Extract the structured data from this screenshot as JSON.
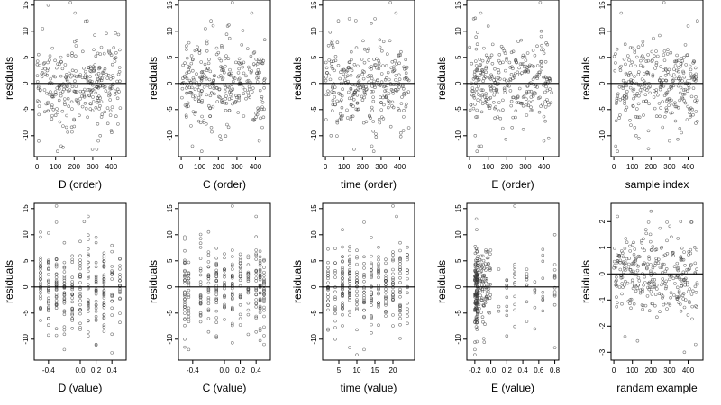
{
  "figure": {
    "background": "#ffffff",
    "point_color": "#3a3a3a",
    "line_color": "#000000"
  },
  "chart_data": [
    {
      "type": "scatter",
      "xlabel": "D (order)",
      "ylabel": "residuals",
      "xlim": [
        -15,
        480
      ],
      "ylim": [
        -14,
        16
      ],
      "xticks": [
        0,
        100,
        200,
        300,
        400
      ],
      "xtick_labels": [
        "0",
        "100",
        "200",
        "300",
        "400"
      ],
      "yticks": [
        -10,
        -5,
        0,
        5,
        10,
        15
      ],
      "ytick_labels": [
        "-10",
        "-5",
        "0",
        "5",
        "10",
        "15"
      ],
      "hline": 0,
      "x_distribution": "uniform",
      "x_range": [
        0,
        450
      ],
      "x": [
        30,
        110,
        205,
        270,
        340,
        130,
        180,
        330,
        400,
        60
      ],
      "y": [
        10.5,
        -13,
        13.5,
        12,
        -10,
        -12,
        15.5,
        -11,
        -9,
        15
      ]
    },
    {
      "type": "scatter",
      "xlabel": "C (order)",
      "ylabel": "residuals",
      "xlim": [
        -15,
        480
      ],
      "ylim": [
        -14,
        16
      ],
      "xticks": [
        0,
        100,
        200,
        300,
        400
      ],
      "xtick_labels": [
        "0",
        "100",
        "200",
        "300",
        "400"
      ],
      "yticks": [
        -10,
        -5,
        0,
        5,
        10,
        15
      ],
      "ytick_labels": [
        "-10",
        "-5",
        "0",
        "5",
        "10",
        "15"
      ],
      "hline": 0,
      "x_distribution": "uniform",
      "x_range": [
        0,
        450
      ],
      "x": [
        130,
        160,
        60,
        275,
        250,
        380,
        420,
        110
      ],
      "y": [
        10.5,
        12,
        -12,
        15.5,
        11,
        13.5,
        -11,
        -13
      ]
    },
    {
      "type": "scatter",
      "xlabel": "time (order)",
      "ylabel": "residuals",
      "xlim": [
        -15,
        480
      ],
      "ylim": [
        -14,
        16
      ],
      "xticks": [
        0,
        100,
        200,
        300,
        400
      ],
      "xtick_labels": [
        "0",
        "100",
        "200",
        "300",
        "400"
      ],
      "yticks": [
        -10,
        -5,
        0,
        5,
        10,
        15
      ],
      "ytick_labels": [
        "-10",
        "-5",
        "0",
        "5",
        "10",
        "15"
      ],
      "hline": 0,
      "x_distribution": "uniform",
      "x_range": [
        0,
        450
      ],
      "x": [
        350,
        380,
        250,
        260,
        30,
        420,
        70
      ],
      "y": [
        15.5,
        13.5,
        -12,
        -13,
        -10,
        -9,
        12
      ]
    },
    {
      "type": "scatter",
      "xlabel": "E (order)",
      "ylabel": "residuals",
      "xlim": [
        -15,
        480
      ],
      "ylim": [
        -14,
        16
      ],
      "xticks": [
        0,
        100,
        200,
        300,
        400
      ],
      "xtick_labels": [
        "0",
        "100",
        "200",
        "300",
        "400"
      ],
      "yticks": [
        -10,
        -5,
        0,
        5,
        10,
        15
      ],
      "ytick_labels": [
        "-10",
        "-5",
        "0",
        "5",
        "10",
        "15"
      ],
      "hline": 0,
      "x_distribution": "uniform",
      "x_range": [
        0,
        450
      ],
      "x": [
        30,
        50,
        40,
        380,
        30,
        100,
        60,
        400
      ],
      "y": [
        -10,
        -12,
        -13,
        15.5,
        12.5,
        11,
        13.5,
        -11
      ]
    },
    {
      "type": "scatter",
      "xlabel": "sample index",
      "ylabel": "residuals",
      "xlim": [
        -15,
        480
      ],
      "ylim": [
        -14,
        16
      ],
      "xticks": [
        0,
        100,
        200,
        300,
        400
      ],
      "xtick_labels": [
        "0",
        "100",
        "200",
        "300",
        "400"
      ],
      "yticks": [
        -10,
        -5,
        0,
        5,
        10,
        15
      ],
      "ytick_labels": [
        "-10",
        "-5",
        "0",
        "5",
        "10",
        "15"
      ],
      "hline": 0,
      "x_distribution": "uniform",
      "x_range": [
        0,
        450
      ],
      "x": [
        10,
        20,
        40,
        270,
        400,
        450,
        300,
        120
      ],
      "y": [
        -12,
        -13,
        13.5,
        15.5,
        11,
        12,
        -11,
        -10
      ]
    },
    {
      "type": "scatter",
      "xlabel": "D (value)",
      "ylabel": "residuals",
      "xlim": [
        -0.58,
        0.58
      ],
      "ylim": [
        -14,
        16
      ],
      "xticks": [
        -0.4,
        0,
        0.2,
        0.4
      ],
      "xtick_labels": [
        "-0.4",
        "0.0",
        "0.2",
        "0.4"
      ],
      "yticks": [
        -10,
        -5,
        0,
        5,
        10,
        15
      ],
      "ytick_labels": [
        "-10",
        "-5",
        "0",
        "5",
        "10",
        "15"
      ],
      "hline": 0,
      "x_distribution": "discrete",
      "x_range": [
        -0.5,
        0.5
      ],
      "x_values": [
        -0.5,
        -0.4,
        -0.3,
        -0.2,
        -0.1,
        0,
        0.1,
        0.2,
        0.3,
        0.4,
        0.5
      ],
      "x": [
        -0.3,
        0.1,
        -0.5,
        0.05,
        -0.2,
        0.2
      ],
      "y": [
        15.5,
        13.5,
        10.5,
        12.5,
        -12,
        -11
      ]
    },
    {
      "type": "scatter",
      "xlabel": "C (value)",
      "ylabel": "residuals",
      "xlim": [
        -0.58,
        0.58
      ],
      "ylim": [
        -14,
        16
      ],
      "xticks": [
        -0.4,
        0,
        0.2,
        0.4
      ],
      "xtick_labels": [
        "-0.4",
        "0.0",
        "0.2",
        "0.4"
      ],
      "yticks": [
        -10,
        -5,
        0,
        5,
        10,
        15
      ],
      "ytick_labels": [
        "-10",
        "-5",
        "0",
        "5",
        "10",
        "15"
      ],
      "hline": 0,
      "x_distribution": "discrete",
      "x_range": [
        -0.5,
        0.5
      ],
      "x_values": [
        -0.5,
        -0.45,
        -0.3,
        -0.2,
        -0.1,
        0,
        0.1,
        0.2,
        0.3,
        0.4,
        0.45,
        0.5
      ],
      "x": [
        0.1,
        0.4,
        -0.45,
        -0.5,
        0.5
      ],
      "y": [
        15.5,
        13.5,
        -12,
        -10,
        -11
      ]
    },
    {
      "type": "scatter",
      "xlabel": "time (value)",
      "ylabel": "residuals",
      "xlim": [
        0.5,
        26
      ],
      "ylim": [
        -14,
        16
      ],
      "xticks": [
        5,
        10,
        15,
        20
      ],
      "xtick_labels": [
        "5",
        "10",
        "15",
        "20"
      ],
      "yticks": [
        -10,
        -5,
        0,
        5,
        10,
        15
      ],
      "ytick_labels": [
        "-10",
        "-5",
        "0",
        "5",
        "10",
        "15"
      ],
      "hline": 0,
      "x_distribution": "discrete",
      "x_range": [
        2,
        24
      ],
      "x_values": [
        2,
        4,
        6,
        8,
        10,
        12,
        14,
        16,
        18,
        20,
        22,
        24
      ],
      "x": [
        20,
        21,
        12,
        10,
        4
      ],
      "y": [
        15.5,
        13.5,
        -12,
        -13,
        -10
      ]
    },
    {
      "type": "scatter",
      "xlabel": "E (value)",
      "ylabel": "residuals",
      "xlim": [
        -0.3,
        0.85
      ],
      "ylim": [
        -14,
        16
      ],
      "xticks": [
        -0.2,
        0,
        0.2,
        0.4,
        0.6,
        0.8
      ],
      "xtick_labels": [
        "-0.2",
        "0.0",
        "0.2",
        "0.4",
        "0.6",
        "0.8"
      ],
      "yticks": [
        -10,
        -5,
        0,
        5,
        10,
        15
      ],
      "ytick_labels": [
        "-10",
        "-5",
        "0",
        "5",
        "10",
        "15"
      ],
      "hline": 0,
      "x_distribution": "skewed",
      "x_range": [
        -0.2,
        0.8
      ],
      "x": [
        -0.2,
        -0.2,
        0.3,
        0.8,
        -0.18
      ],
      "y": [
        -12,
        -13,
        15.5,
        10,
        13
      ]
    },
    {
      "type": "scatter",
      "xlabel": "randam example",
      "ylabel": "residuals",
      "xlim": [
        -15,
        480
      ],
      "ylim": [
        -3.3,
        2.7
      ],
      "xticks": [
        0,
        100,
        200,
        300,
        400
      ],
      "xtick_labels": [
        "0",
        "100",
        "200",
        "300",
        "400"
      ],
      "yticks": [
        -3,
        -2,
        -1,
        0,
        1,
        2
      ],
      "ytick_labels": [
        "-3",
        "-2",
        "-1",
        "0",
        "1",
        "2"
      ],
      "hline": 0,
      "x_distribution": "uniform",
      "x_range": [
        0,
        450
      ],
      "x": [
        20,
        200,
        380,
        440,
        360,
        60
      ],
      "y": [
        2.2,
        2.4,
        -3.0,
        -2.7,
        2.0,
        -2.4
      ]
    }
  ]
}
